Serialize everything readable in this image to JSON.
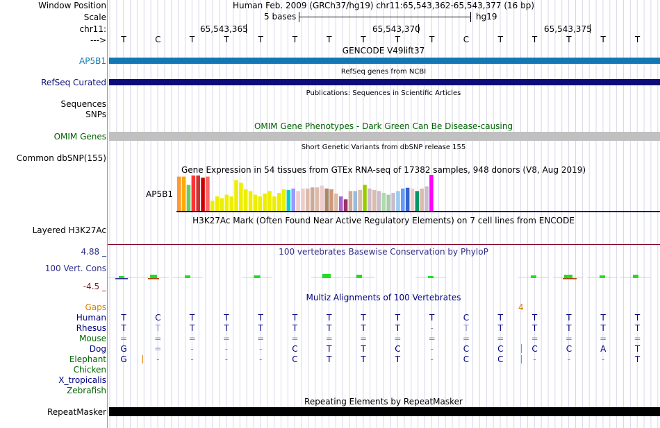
{
  "header": {
    "window_position_label": "Window Position",
    "scale_label": "Scale",
    "chrom_label": "chr11:",
    "arrow_label": "--->",
    "assembly_text": "Human Feb. 2009 (GRCh37/hg19)   chr11:65,543,362-65,543,377 (16 bp)",
    "scale_text": "5 bases",
    "scale_db": "hg19",
    "ticks": [
      "65,543,365",
      "65,543,370",
      "65,543,375"
    ]
  },
  "sequence": [
    "T",
    "C",
    "T",
    "T",
    "T",
    "T",
    "T",
    "T",
    "T",
    "T",
    "C",
    "T",
    "T",
    "T",
    "T",
    "T"
  ],
  "tracks": {
    "gencode": {
      "title": "GENCODE V49lift37",
      "label": "AP5B1",
      "color": "#1277b4"
    },
    "refseq": {
      "title": "RefSeq genes from NCBI",
      "label": "RefSeq Curated",
      "color": "#0d0d7a"
    },
    "publications": {
      "title": "Publications: Sequences in Scientific Articles",
      "labels": [
        "Sequences",
        "SNPs"
      ]
    },
    "omim": {
      "title": "OMIM Gene Phenotypes - Dark Green Can Be Disease-causing",
      "label": "OMIM Genes",
      "color": "#c0c0c0"
    },
    "dbsnp": {
      "title": "Short Genetic Variants from dbSNP release 155",
      "label": "Common dbSNP(155)"
    },
    "gtex": {
      "title": "Gene Expression in 54 tissues from GTEx RNA-seq of 17382 samples, 948 donors (V8, Aug 2019)",
      "gene": "AP5B1",
      "bar_values": [
        0.95,
        0.95,
        0.72,
        0.98,
        0.98,
        0.92,
        0.95,
        0.28,
        0.4,
        0.35,
        0.45,
        0.4,
        0.85,
        0.78,
        0.6,
        0.55,
        0.45,
        0.4,
        0.48,
        0.55,
        0.4,
        0.5,
        0.6,
        0.58,
        0.62,
        0.55,
        0.62,
        0.62,
        0.65,
        0.65,
        0.7,
        0.62,
        0.6,
        0.48,
        0.4,
        0.32,
        0.55,
        0.55,
        0.58,
        0.72,
        0.62,
        0.58,
        0.55,
        0.5,
        0.45,
        0.5,
        0.55,
        0.62,
        0.64,
        0.62,
        0.55,
        0.62,
        0.68,
        1.0
      ],
      "bar_colors": [
        "#ff9933",
        "#ffaa00",
        "#66cc66",
        "#ff3333",
        "#cc3333",
        "#cc0000",
        "#ff6666",
        "#eeee00",
        "#eeee00",
        "#eeee00",
        "#eeee00",
        "#eeee00",
        "#eeee00",
        "#eeee00",
        "#eeee00",
        "#eeee00",
        "#eeee00",
        "#eeee00",
        "#eeee00",
        "#eeee00",
        "#eeee00",
        "#eeee00",
        "#eeee00",
        "#00cccc",
        "#9999ff",
        "#eecccc",
        "#eecccc",
        "#ddbbaa",
        "#ccaa99",
        "#ddbbaa",
        "#eecccc",
        "#aa8866",
        "#cc9977",
        "#ddbbaa",
        "#aa66cc",
        "#993366",
        "#ccaa99",
        "#99bbdd",
        "#ddbbaa",
        "#99cc00",
        "#ccbbcc",
        "#ddbbaa",
        "#ccbbcc",
        "#aaddaa",
        "#aaccaa",
        "#ccbbcc",
        "#99ccee",
        "#6699ff",
        "#3366cc",
        "#eecccc",
        "#009966",
        "#ddbbaa",
        "#ccbbcc",
        "#ff00ff"
      ]
    },
    "h3k27ac": {
      "title": "H3K27Ac Mark (Often Found Near Active Regulatory Elements) on 7 cell lines from ENCODE",
      "label": "Layered H3K27Ac"
    },
    "phylop": {
      "title": "100 vertebrates Basewise Conservation by PhyloP",
      "label": "100 Vert. Cons",
      "max": "4.88 _",
      "min": "-4.5 _"
    },
    "multiz": {
      "title": "Multiz Alignments of 100 Vertebrates",
      "gaps_label": "Gaps",
      "gaps_value": "4",
      "species": [
        {
          "name": "Human",
          "color": "#000080",
          "bases": [
            "T",
            "C",
            "T",
            "T",
            "T",
            "T",
            "T",
            "T",
            "T",
            "T",
            "C",
            "T",
            "T",
            "T",
            "T",
            "T"
          ]
        },
        {
          "name": "Rhesus",
          "color": "#000080",
          "bases": [
            "T",
            "T",
            "T",
            "T",
            "T",
            "T",
            "T",
            "T",
            "T",
            "-",
            "T",
            "T",
            "T",
            "T",
            "T",
            "T"
          ]
        },
        {
          "name": "Mouse",
          "color": "#006400",
          "bases": [
            "=",
            "=",
            "=",
            "=",
            "=",
            "=",
            "=",
            "=",
            "=",
            "=",
            "=",
            "=",
            "=",
            "=",
            "=",
            "="
          ]
        },
        {
          "name": "Dog",
          "color": "#000080",
          "bases": [
            "G",
            "=",
            "-",
            "-",
            "-",
            "C",
            "T",
            "T",
            "C",
            "-",
            "C",
            "C",
            "C",
            "C",
            "A",
            "T"
          ]
        },
        {
          "name": "Elephant",
          "color": "#006400",
          "bases": [
            "G",
            "-",
            "-",
            "-",
            "-",
            "C",
            "T",
            "T",
            "T",
            "-",
            "C",
            "C",
            "-",
            "-",
            "-",
            "T"
          ]
        },
        {
          "name": "Chicken",
          "color": "#006400",
          "bases": []
        },
        {
          "name": "X_tropicalis",
          "color": "#000080",
          "bases": []
        },
        {
          "name": "Zebrafish",
          "color": "#006400",
          "bases": []
        }
      ]
    },
    "repeatmasker": {
      "title": "Repeating Elements by RepeatMasker",
      "label": "RepeatMasker"
    }
  }
}
